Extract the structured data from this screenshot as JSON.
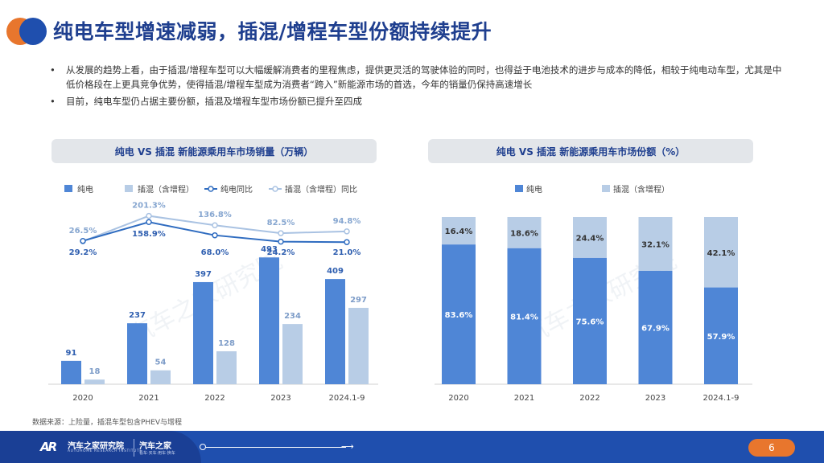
{
  "title": "纯电车型增速减弱，插混/增程车型份额持续提升",
  "bullets": [
    "从发展的趋势上看，由于插混/增程车型可以大幅缓解消费者的里程焦虑，提供更灵活的驾驶体验的同时，也得益于电池技术的进步与成本的降低，相较于纯电动车型，尤其是中低价格段在上更具竞争优势，使得插混/增程车型成为消费者“跨入”新能源市场的首选，今年的销量仍保持高速增长",
    "目前，纯电车型仍占据主要份额，插混及增程车型市场份额已提升至四成"
  ],
  "left_chart_title": "纯电 VS 插混 新能源乘用车市场销量（万辆）",
  "right_chart_title": "纯电 VS 插混 新能源乘用车市场份额（%）",
  "source_note": "数据来源：上险量，插混车型包含PHEV与增程",
  "watermark": "汽车之家研究院",
  "footer": {
    "brand_mark": "AR",
    "brand_name": "汽车之家研究院",
    "brand_sub": "AUTOHOME RESEARCH INSTITUTE",
    "brand2_name": "汽车之家",
    "brand2_sub": "看车·买车·用车·换车",
    "page_number": "6"
  },
  "colors": {
    "bev": "#4f86d6",
    "phev": "#b8cde6",
    "title_blue": "#1f3f8f",
    "accent_orange": "#e8762d",
    "footer_blue": "#1f4fae"
  },
  "chart_data": [
    {
      "type": "bar",
      "title": "纯电 VS 插混 新能源乘用车市场销量（万辆）",
      "categories": [
        "2020",
        "2021",
        "2022",
        "2023",
        "2024.1-9"
      ],
      "series": [
        {
          "name": "纯电",
          "kind": "bar",
          "color": "#4f86d6",
          "values": [
            91,
            237,
            397,
            493,
            409
          ]
        },
        {
          "name": "插混（含增程）",
          "kind": "bar",
          "color": "#b8cde6",
          "values": [
            18,
            54,
            128,
            234,
            297
          ]
        },
        {
          "name": "纯电同比",
          "kind": "line",
          "color": "#2f6cc0",
          "values": [
            29.2,
            158.9,
            68.0,
            24.2,
            21.0
          ],
          "labels": [
            "29.2%",
            "158.9%",
            "68.0%",
            "24.2%",
            "21.0%"
          ]
        },
        {
          "name": "插混（含增程）同比",
          "kind": "line",
          "color": "#a9c2e2",
          "values": [
            26.5,
            201.3,
            136.8,
            82.5,
            94.8
          ],
          "labels": [
            "26.5%",
            "201.3%",
            "136.8%",
            "82.5%",
            "94.8%"
          ]
        }
      ],
      "legend": "top"
    },
    {
      "type": "bar",
      "stacked": true,
      "title": "纯电 VS 插混 新能源乘用车市场份额（%）",
      "categories": [
        "2020",
        "2021",
        "2022",
        "2023",
        "2024.1-9"
      ],
      "series": [
        {
          "name": "纯电",
          "color": "#4f86d6",
          "values": [
            83.6,
            81.4,
            75.6,
            67.9,
            57.9
          ],
          "labels": [
            "83.6%",
            "81.4%",
            "75.6%",
            "67.9%",
            "57.9%"
          ]
        },
        {
          "name": "插混（含增程）",
          "color": "#b8cde6",
          "values": [
            16.4,
            18.6,
            24.4,
            32.1,
            42.1
          ],
          "labels": [
            "16.4%",
            "18.6%",
            "24.4%",
            "32.1%",
            "42.1%"
          ]
        }
      ],
      "ylim": [
        0,
        100
      ],
      "legend": "top"
    }
  ]
}
